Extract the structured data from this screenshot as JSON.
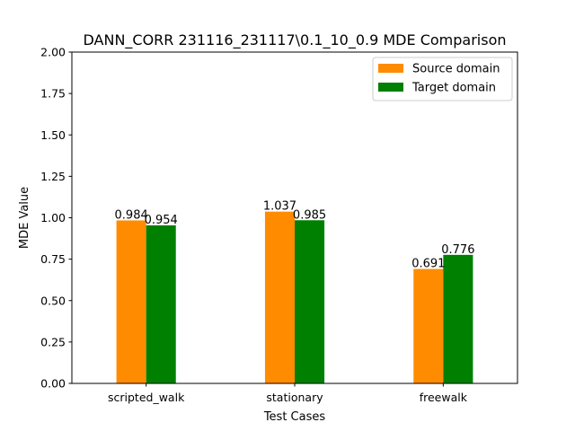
{
  "chart_data": {
    "type": "bar",
    "title": "DANN_CORR 231116_231117\\0.1_10_0.9 MDE Comparison",
    "xlabel": "Test Cases",
    "ylabel": "MDE Value",
    "categories": [
      "scripted_walk",
      "stationary",
      "freewalk"
    ],
    "series": [
      {
        "name": "Source domain",
        "color": "#ff8c00",
        "values": [
          0.984,
          1.037,
          0.691
        ],
        "labels": [
          "0.984",
          "1.037",
          "0.691"
        ]
      },
      {
        "name": "Target domain",
        "color": "#008000",
        "values": [
          0.954,
          0.985,
          0.776
        ],
        "labels": [
          "0.954",
          "0.985",
          "0.776"
        ]
      }
    ],
    "ylim": [
      0,
      2
    ],
    "yticks": [
      "0.00",
      "0.25",
      "0.50",
      "0.75",
      "1.00",
      "1.25",
      "1.50",
      "1.75",
      "2.00"
    ],
    "grid": false,
    "legend_position": "top-right"
  }
}
